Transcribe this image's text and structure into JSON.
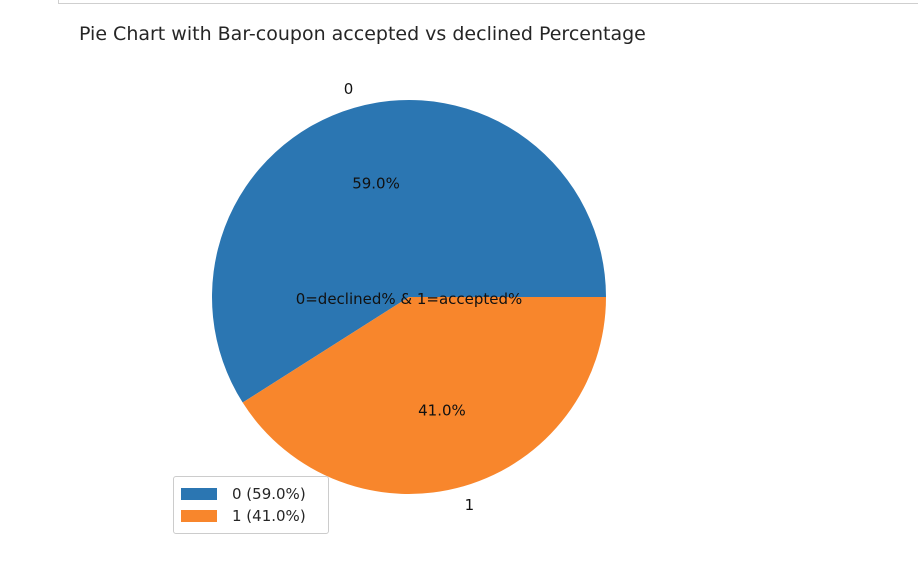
{
  "chart_data": {
    "type": "pie",
    "title": "Pie Chart with Bar-coupon accepted vs declined Percentage",
    "center_label": "0=declined% & 1=accepted%",
    "slices": [
      {
        "label": "0",
        "value": 59.0,
        "pct_label": "59.0%",
        "color": "#2b76b2"
      },
      {
        "label": "1",
        "value": 41.0,
        "pct_label": "41.0%",
        "color": "#f8862c"
      }
    ],
    "legend": {
      "position": "lower-left",
      "entries": [
        "0 (59.0%)",
        "1 (41.0%)"
      ]
    }
  }
}
